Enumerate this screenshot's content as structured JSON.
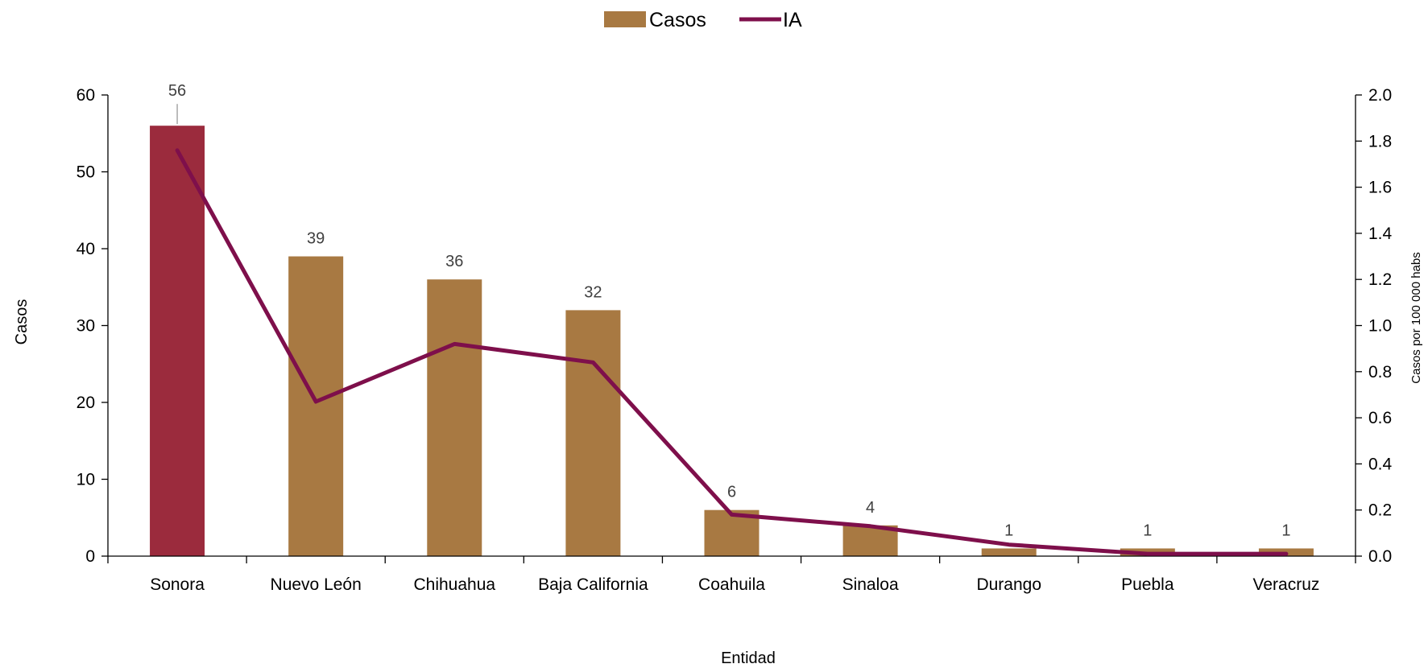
{
  "chart_data": {
    "type": "bar",
    "categories": [
      "Sonora",
      "Nuevo León",
      "Chihuahua",
      "Baja California",
      "Coahuila",
      "Sinaloa",
      "Durango",
      "Puebla",
      "Veracruz"
    ],
    "series": [
      {
        "name": "Casos",
        "type": "bar",
        "axis": "left",
        "values": [
          56,
          39,
          36,
          32,
          6,
          4,
          1,
          1,
          1
        ],
        "color": "#A87942",
        "highlight_color": "#9B2B3D",
        "highlight_index": 0
      },
      {
        "name": "IA",
        "type": "line",
        "axis": "right",
        "values": [
          1.76,
          0.67,
          0.92,
          0.84,
          0.18,
          0.13,
          0.05,
          0.01,
          0.01
        ],
        "color": "#7E0F4B"
      }
    ],
    "data_labels": [
      "56",
      "39",
      "36",
      "32",
      "6",
      "4",
      "1",
      "1",
      "1"
    ],
    "xlabel": "Entidad",
    "ylabel": "Casos",
    "y2label": "Casos por 100 000 habs",
    "ylim": [
      0,
      60
    ],
    "y2lim": [
      0,
      2.0
    ],
    "yticks": [
      "0",
      "10",
      "20",
      "30",
      "40",
      "50",
      "60"
    ],
    "y2ticks": [
      "0.0",
      "0.2",
      "0.4",
      "0.6",
      "0.8",
      "1.0",
      "1.2",
      "1.4",
      "1.6",
      "1.8",
      "2.0"
    ],
    "grid": false,
    "legend_position": "top-center"
  }
}
